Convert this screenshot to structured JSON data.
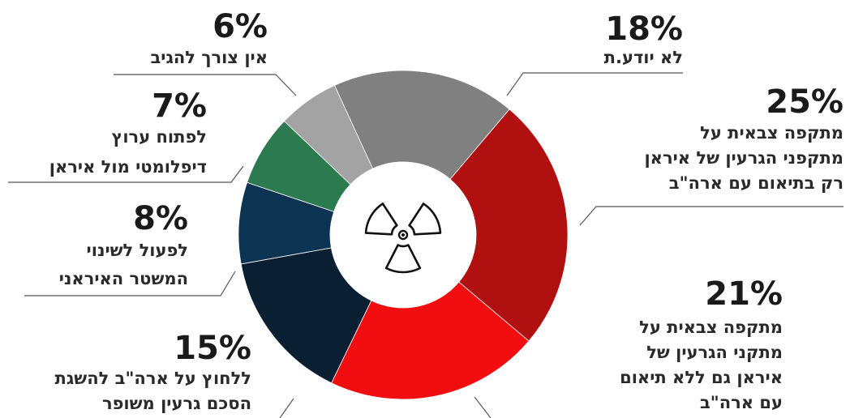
{
  "chart_data": {
    "type": "pie",
    "categories": [
      [
        "לא יודע.ת"
      ],
      [
        "מתקפה צבאית על",
        "מתקפני הגרעין של איראן",
        "רק בתיאום עם ארה\"ב"
      ],
      [
        "מתקפה צבאית על",
        "מתקני הגרעין של",
        "איראן גם ללא תיאום",
        "עם ארה\"ב"
      ],
      [
        "ללחוץ על ארה\"ב להשגת",
        "הסכם גרעין משופר"
      ],
      [
        "לפעול לשינוי",
        "המשטר האיראני"
      ],
      [
        "לפתוח ערוץ",
        "דיפלומטי מול איראן"
      ],
      [
        "אין צורך להגיב"
      ]
    ],
    "values": [
      18,
      25,
      21,
      15,
      8,
      7,
      6
    ],
    "value_labels": [
      "18%",
      "25%",
      "21%",
      "15%",
      "8%",
      "7%",
      "6%"
    ],
    "colors": [
      "#808080",
      "#b01010",
      "#f20d10",
      "#0b1f33",
      "#0d3352",
      "#2b7a50",
      "#a3a3a3"
    ]
  }
}
